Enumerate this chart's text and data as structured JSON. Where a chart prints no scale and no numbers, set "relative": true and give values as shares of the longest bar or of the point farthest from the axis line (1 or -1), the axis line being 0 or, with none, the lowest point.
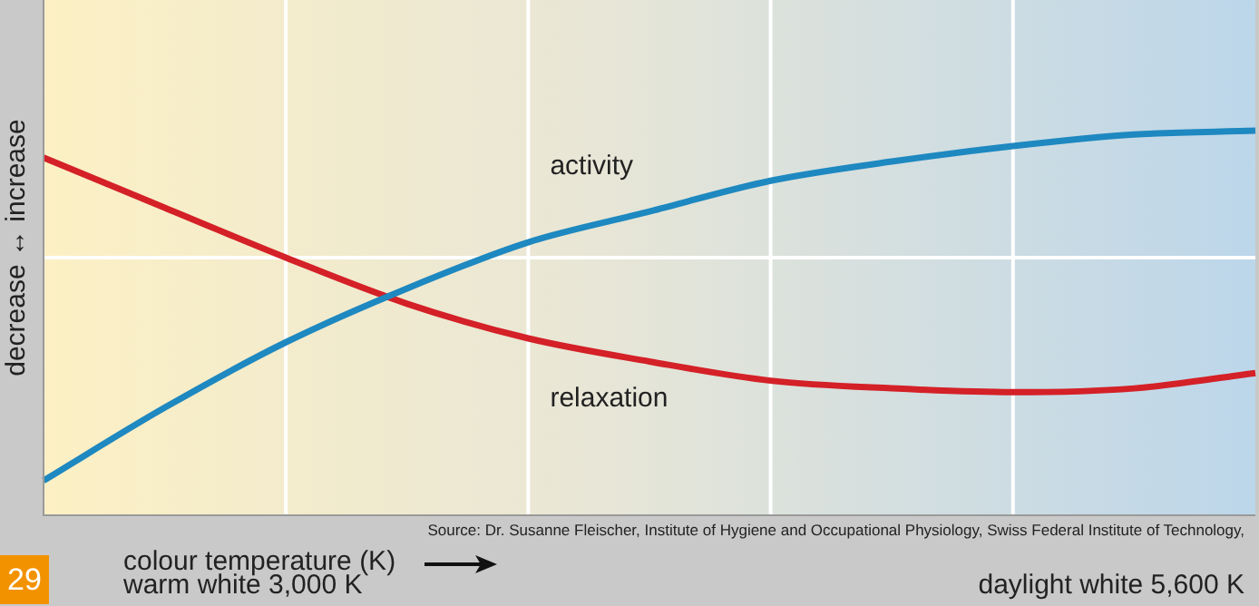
{
  "chart_data": {
    "type": "line",
    "relative": true,
    "grid": true,
    "marker": "none",
    "line_style": "solid",
    "legend": false,
    "ylabel": "decrease ↔ increase",
    "xlabel": "colour temperature (K)",
    "categories": [
      null,
      null,
      null,
      null,
      null,
      null,
      null,
      null,
      null,
      null,
      null
    ],
    "series": [
      {
        "name": "activity",
        "color": "#1e88c0",
        "values": [
          0.09,
          0.28,
          0.45,
          0.59,
          0.71,
          0.79,
          0.87,
          0.92,
          0.96,
          0.99,
          1
        ]
      },
      {
        "name": "relaxation",
        "color": "#d42027",
        "values": [
          0.93,
          0.8,
          0.67,
          0.55,
          0.46,
          0.4,
          0.35,
          0.33,
          0.32,
          0.33,
          0.37
        ]
      }
    ],
    "annotations": [
      "Source: Dr. Susanne Fleischer, Institute of Hygiene and Occupational Physiology, Swiss Federal Institute of Technology,",
      "warm white 3,000 K",
      "daylight white 5,600 K",
      "29"
    ]
  }
}
